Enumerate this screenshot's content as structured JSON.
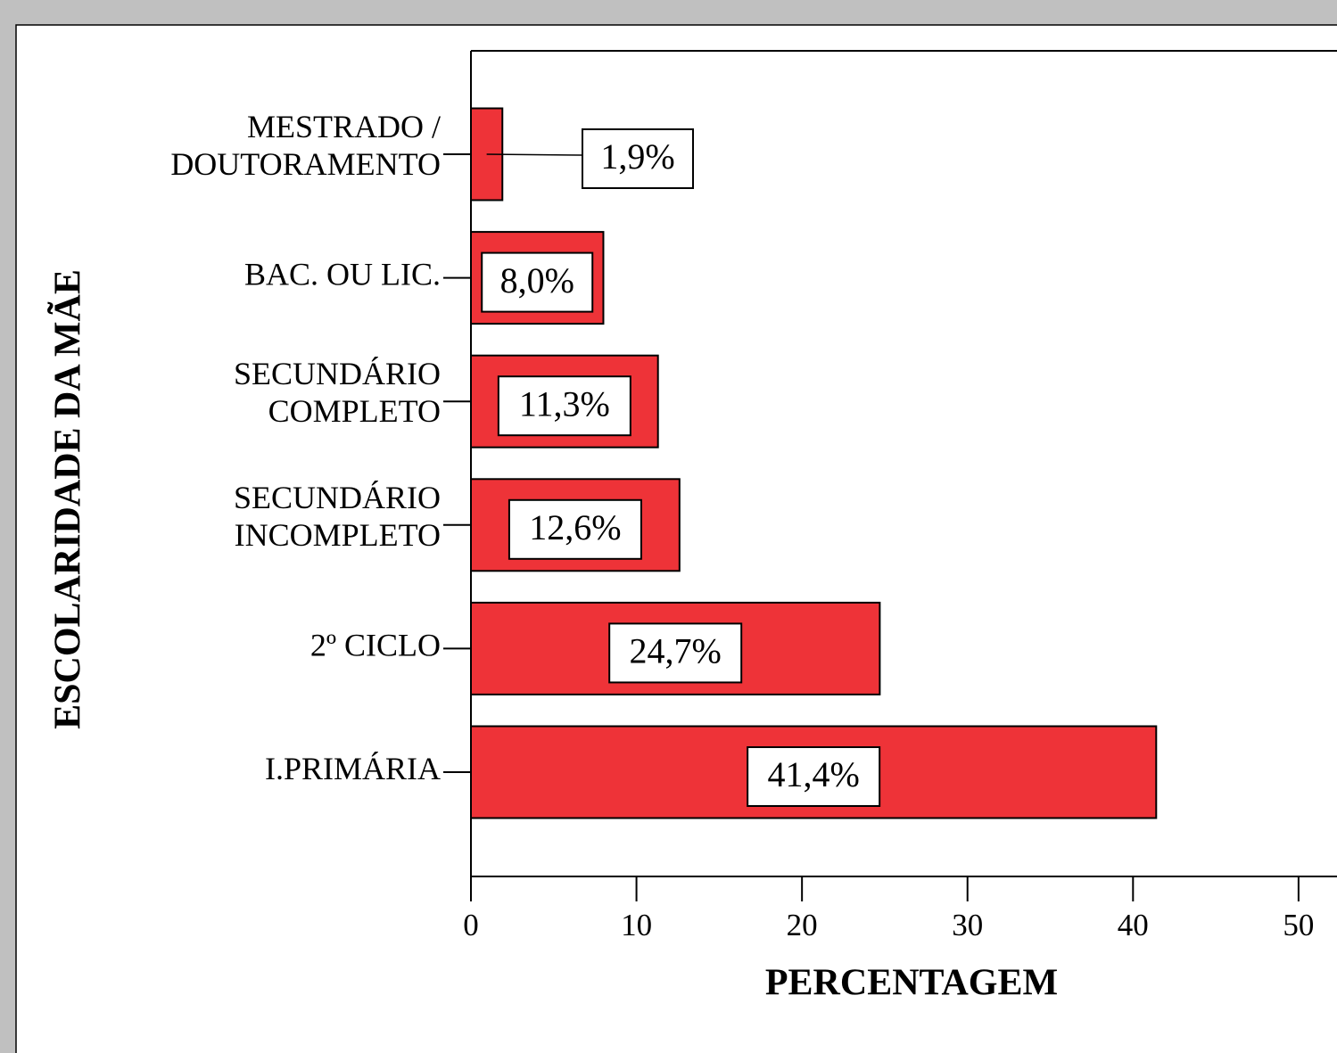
{
  "chart_data": {
    "type": "barh",
    "categories": [
      [
        "MESTRADO /",
        "DOUTORAMENTO"
      ],
      [
        "BAC. OU LIC."
      ],
      [
        "SECUNDÁRIO",
        "COMPLETO"
      ],
      [
        "SECUNDÁRIO",
        "INCOMPLETO"
      ],
      [
        "2º CICLO"
      ],
      [
        "I.PRIMÁRIA"
      ]
    ],
    "values": [
      1.9,
      8.0,
      11.3,
      12.6,
      24.7,
      41.4
    ],
    "value_labels": [
      "1,9%",
      "8,0%",
      "11,3%",
      "12,6%",
      "24,7%",
      "41,4%"
    ],
    "color": "#ee3338",
    "xlabel": "PERCENTAGEM",
    "ylabel": "ESCOLARIDADE DA MÃE",
    "xlim": [
      0,
      52
    ],
    "xticks": [
      0,
      10,
      20,
      30,
      40,
      50
    ]
  }
}
